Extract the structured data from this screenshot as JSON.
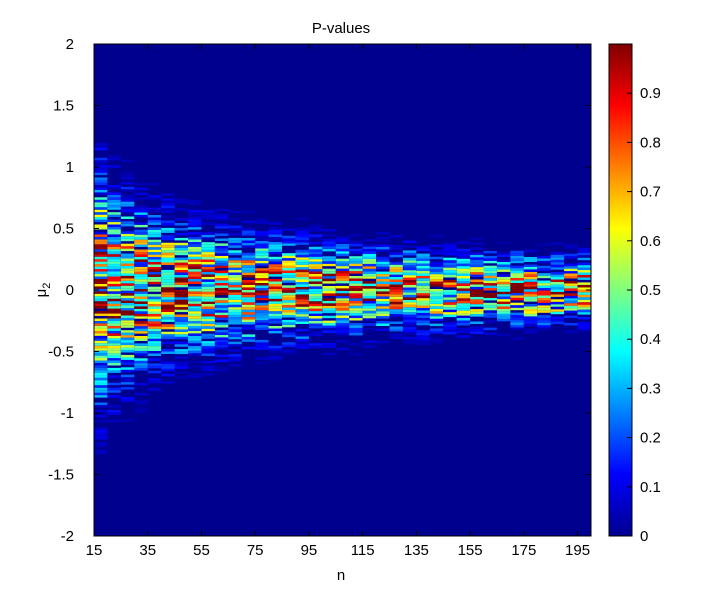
{
  "chart_data": {
    "type": "heatmap",
    "title": "P-values",
    "xlabel": "n",
    "ylabel": "μ",
    "ylabel_subscript": "2",
    "x_range": [
      15,
      200
    ],
    "y_range": [
      -2,
      2
    ],
    "x_ticks": [
      "15",
      "35",
      "55",
      "75",
      "95",
      "115",
      "135",
      "155",
      "175",
      "195"
    ],
    "y_ticks": [
      "2",
      "1.5",
      "1",
      "0.5",
      "0",
      "-0.5",
      "-1",
      "-1.5",
      "-2"
    ],
    "colorbar": {
      "colormap": "jet",
      "range": [
        0,
        1
      ],
      "ticks": [
        "0",
        "0.1",
        "0.2",
        "0.3",
        "0.4",
        "0.5",
        "0.6",
        "0.7",
        "0.8",
        "0.9"
      ]
    },
    "background_color": "#00008f",
    "n_min": 15,
    "n_max": 200,
    "n_step": 5,
    "mu2_step": 0.0201,
    "description_of_values": "p-value per (n, mu2) cell: highest near mu2 = 0, spread shrinking with n; zero elsewhere"
  }
}
